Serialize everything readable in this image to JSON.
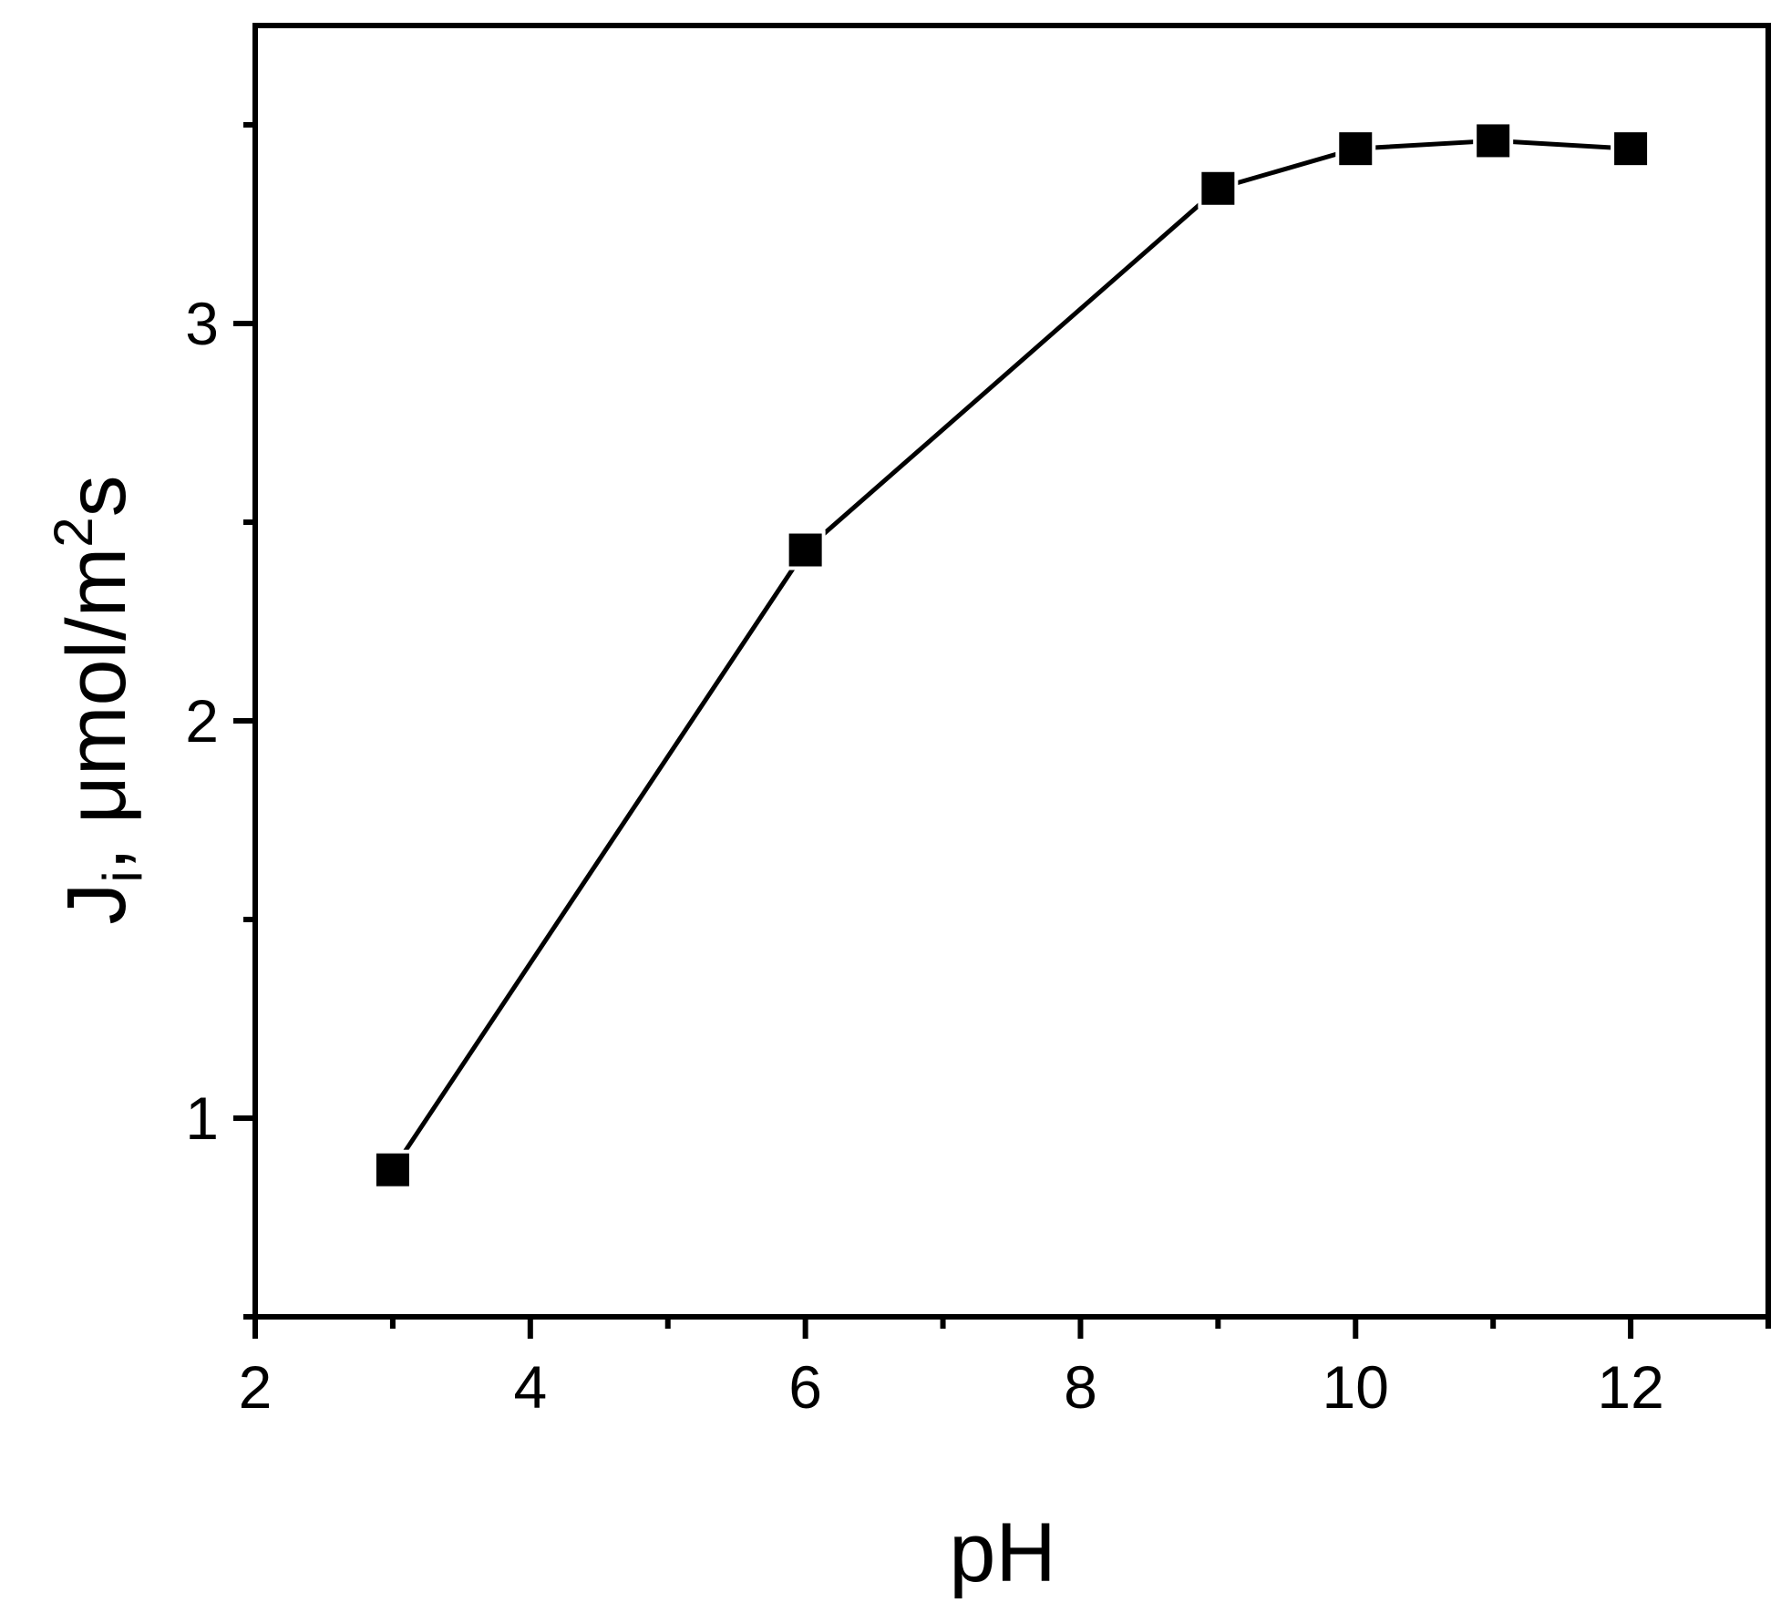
{
  "chart_data": {
    "type": "line",
    "title": "",
    "xlabel": "pH",
    "ylabel": {
      "main": "J",
      "subscript": "i",
      "unit_prefix": ", μmol/m",
      "superscript": "2",
      "unit_suffix": "s"
    },
    "xlim": [
      2,
      13
    ],
    "ylim": [
      0.5,
      3.75
    ],
    "x_ticks": [
      2,
      4,
      6,
      8,
      10,
      12
    ],
    "x_tick_labels": [
      "2",
      "4",
      "6",
      "8",
      "10",
      "12"
    ],
    "x_minor_ticks": [
      3,
      5,
      7,
      9,
      11,
      13
    ],
    "y_ticks": [
      1,
      2,
      3
    ],
    "y_tick_labels": [
      "1",
      "2",
      "3"
    ],
    "y_minor_ticks": [
      0.5,
      1.5,
      2.5,
      3.5
    ],
    "grid": false,
    "marker": "square",
    "line_color": "#000000",
    "series": [
      {
        "x": [
          3,
          6,
          9,
          10,
          11,
          12
        ],
        "y": [
          0.87,
          2.43,
          3.34,
          3.44,
          3.46,
          3.44
        ]
      }
    ]
  }
}
